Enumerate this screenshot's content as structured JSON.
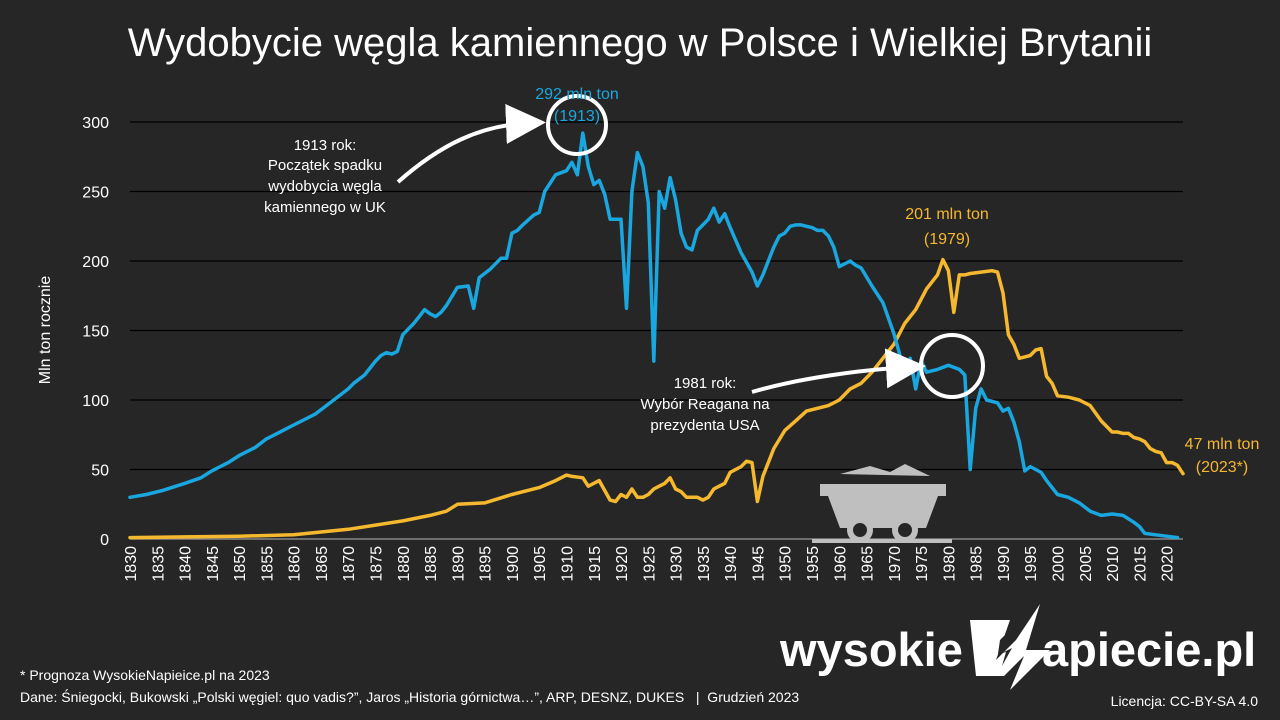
{
  "title": "Wydobycie węgla kamiennego w Polsce i Wielkiej Brytanii",
  "colors": {
    "uk": "#1aa7e0",
    "pl": "#f5b82e",
    "background": "#262626",
    "grid": "#000000",
    "text": "#ffffff"
  },
  "chart_data": {
    "type": "line",
    "title": "Wydobycie węgla kamiennego w Polsce i Wielkiej Brytanii",
    "xlabel": "",
    "ylabel": "Mln ton rocznie",
    "xlim": [
      1830,
      2023
    ],
    "ylim": [
      0,
      300
    ],
    "yticks": [
      "0",
      "50",
      "100",
      "150",
      "200",
      "250",
      "300"
    ],
    "xticks": [
      "1830",
      "1835",
      "1840",
      "1845",
      "1850",
      "1855",
      "1860",
      "1865",
      "1870",
      "1875",
      "1880",
      "1885",
      "1890",
      "1895",
      "1900",
      "1905",
      "1910",
      "1915",
      "1920",
      "1925",
      "1930",
      "1935",
      "1940",
      "1945",
      "1950",
      "1955",
      "1960",
      "1965",
      "1970",
      "1975",
      "1980",
      "1985",
      "1990",
      "1995",
      "2000",
      "2005",
      "2010",
      "2015",
      "2020"
    ],
    "grid": true,
    "legend": "none",
    "series": [
      {
        "key": "uk",
        "x": [
          1830,
          1833,
          1836,
          1840,
          1843,
          1845,
          1848,
          1850,
          1853,
          1855,
          1857,
          1858,
          1860,
          1862,
          1864,
          1866,
          1868,
          1870,
          1871,
          1873,
          1875,
          1876,
          1877,
          1878,
          1879,
          1880,
          1882,
          1883,
          1884,
          1885,
          1886,
          1887,
          1888,
          1890,
          1892,
          1893,
          1894,
          1896,
          1898,
          1899,
          1900,
          1901,
          1902,
          1904,
          1905,
          1906,
          1908,
          1910,
          1911,
          1912,
          1913,
          1914,
          1915,
          1916,
          1917,
          1918,
          1920,
          1921,
          1922,
          1923,
          1924,
          1925,
          1926,
          1927,
          1928,
          1929,
          1930,
          1931,
          1932,
          1933,
          1934,
          1935,
          1936,
          1937,
          1938,
          1939,
          1940,
          1942,
          1944,
          1945,
          1946,
          1947,
          1948,
          1949,
          1950,
          1951,
          1952,
          1953,
          1954,
          1955,
          1956,
          1957,
          1958,
          1959,
          1960,
          1962,
          1963,
          1964,
          1966,
          1968,
          1970,
          1972,
          1973,
          1974,
          1975,
          1976,
          1978,
          1980,
          1982,
          1983,
          1984,
          1985,
          1986,
          1987,
          1989,
          1990,
          1991,
          1992,
          1993,
          1994,
          1995,
          1996,
          1997,
          1998,
          2000,
          2002,
          2004,
          2006,
          2008,
          2010,
          2012,
          2014,
          2015,
          2016,
          2018,
          2020,
          2022
        ],
        "y": [
          30,
          32,
          35,
          40,
          44,
          49,
          55,
          60,
          66,
          72,
          76,
          78,
          82,
          86,
          90,
          96,
          102,
          108,
          112,
          118,
          128,
          132,
          134,
          133,
          135,
          147,
          155,
          160,
          165,
          162,
          160,
          163,
          168,
          181,
          182,
          166,
          188,
          194,
          202,
          202,
          220,
          222,
          226,
          233,
          235,
          250,
          262,
          265,
          271,
          262,
          292,
          268,
          255,
          258,
          248,
          230,
          230,
          166,
          250,
          278,
          268,
          242,
          128,
          250,
          238,
          260,
          244,
          220,
          210,
          208,
          222,
          226,
          230,
          238,
          228,
          234,
          224,
          206,
          192,
          182,
          190,
          200,
          210,
          218,
          220,
          225,
          226,
          226,
          225,
          224,
          222,
          222,
          218,
          210,
          196,
          200,
          197,
          195,
          182,
          170,
          148,
          120,
          130,
          108,
          128,
          120,
          122,
          125,
          122,
          118,
          50,
          94,
          108,
          100,
          98,
          92,
          94,
          84,
          70,
          49,
          52,
          50,
          48,
          42,
          32,
          30,
          26,
          20,
          17,
          18,
          17,
          12,
          9,
          4,
          3,
          2,
          1
        ]
      },
      {
        "key": "pl",
        "x": [
          1830,
          1840,
          1850,
          1860,
          1865,
          1870,
          1875,
          1880,
          1885,
          1888,
          1890,
          1895,
          1900,
          1905,
          1908,
          1910,
          1911,
          1913,
          1914,
          1916,
          1918,
          1919,
          1920,
          1921,
          1922,
          1923,
          1924,
          1925,
          1926,
          1927,
          1928,
          1929,
          1930,
          1931,
          1932,
          1933,
          1934,
          1935,
          1936,
          1937,
          1938,
          1939,
          1940,
          1941,
          1942,
          1943,
          1944,
          1945,
          1946,
          1948,
          1950,
          1952,
          1954,
          1956,
          1958,
          1960,
          1962,
          1964,
          1966,
          1968,
          1970,
          1972,
          1974,
          1976,
          1978,
          1979,
          1980,
          1981,
          1982,
          1983,
          1984,
          1986,
          1988,
          1989,
          1990,
          1991,
          1992,
          1993,
          1994,
          1995,
          1996,
          1997,
          1998,
          1999,
          2000,
          2002,
          2004,
          2006,
          2008,
          2010,
          2011,
          2012,
          2013,
          2014,
          2015,
          2016,
          2017,
          2018,
          2019,
          2020,
          2021,
          2022,
          2023
        ],
        "y": [
          1,
          1.5,
          2,
          3,
          5,
          7,
          10,
          13,
          17,
          20,
          25,
          26,
          32,
          37,
          42,
          46,
          45,
          44,
          38,
          42,
          28,
          27,
          32,
          30,
          36,
          30,
          30,
          32,
          36,
          38,
          40,
          44,
          36,
          34,
          30,
          30,
          30,
          28,
          30,
          36,
          38,
          40,
          48,
          50,
          52,
          56,
          55,
          27,
          45,
          65,
          78,
          85,
          92,
          94,
          96,
          100,
          108,
          112,
          120,
          130,
          140,
          155,
          165,
          180,
          190,
          201,
          193,
          163,
          190,
          190,
          191,
          192,
          193,
          192,
          177,
          147,
          140,
          130,
          131,
          132,
          136,
          137,
          117,
          112,
          103,
          102,
          100,
          96,
          85,
          77,
          77,
          76,
          76,
          73,
          72,
          70,
          65,
          63,
          62,
          55,
          55,
          53,
          47
        ]
      }
    ],
    "annotations": [
      {
        "label_line1": "292 mln ton",
        "label_line2": "(1913)",
        "x": 1913,
        "y": 292,
        "series": "uk"
      },
      {
        "label_line1": "201 mln ton",
        "label_line2": "(1979)",
        "x": 1979,
        "y": 201,
        "series": "pl"
      },
      {
        "label_line1": "47 mln ton",
        "label_line2": "(2023*)",
        "x": 2023,
        "y": 47,
        "series": "pl"
      }
    ]
  },
  "notes": {
    "n1913": [
      "1913 rok:",
      "Początek spadku",
      "wydobycia węgla",
      "kamiennego w UK"
    ],
    "n1981": [
      "1981 rok:",
      "Wybór Reagana na",
      "prezydenta USA"
    ]
  },
  "footer": {
    "forecast": "* Prognoza WysokieNapieice.pl na 2023",
    "sources": "Dane: Śniegocki, Bukowski „Polski węgiel: quo vadis?”, Jaros „Historia górnictwa…”, ARP, DESNZ, DUKES   |  Grudzień 2023",
    "license": "Licencja: CC-BY-SA 4.0"
  },
  "brand": {
    "prefix": "wysokie",
    "suffix": "apiecie.pl",
    "logo_icon": "lightning-n-logo"
  },
  "decor": {
    "icon": "mine-cart-icon"
  }
}
